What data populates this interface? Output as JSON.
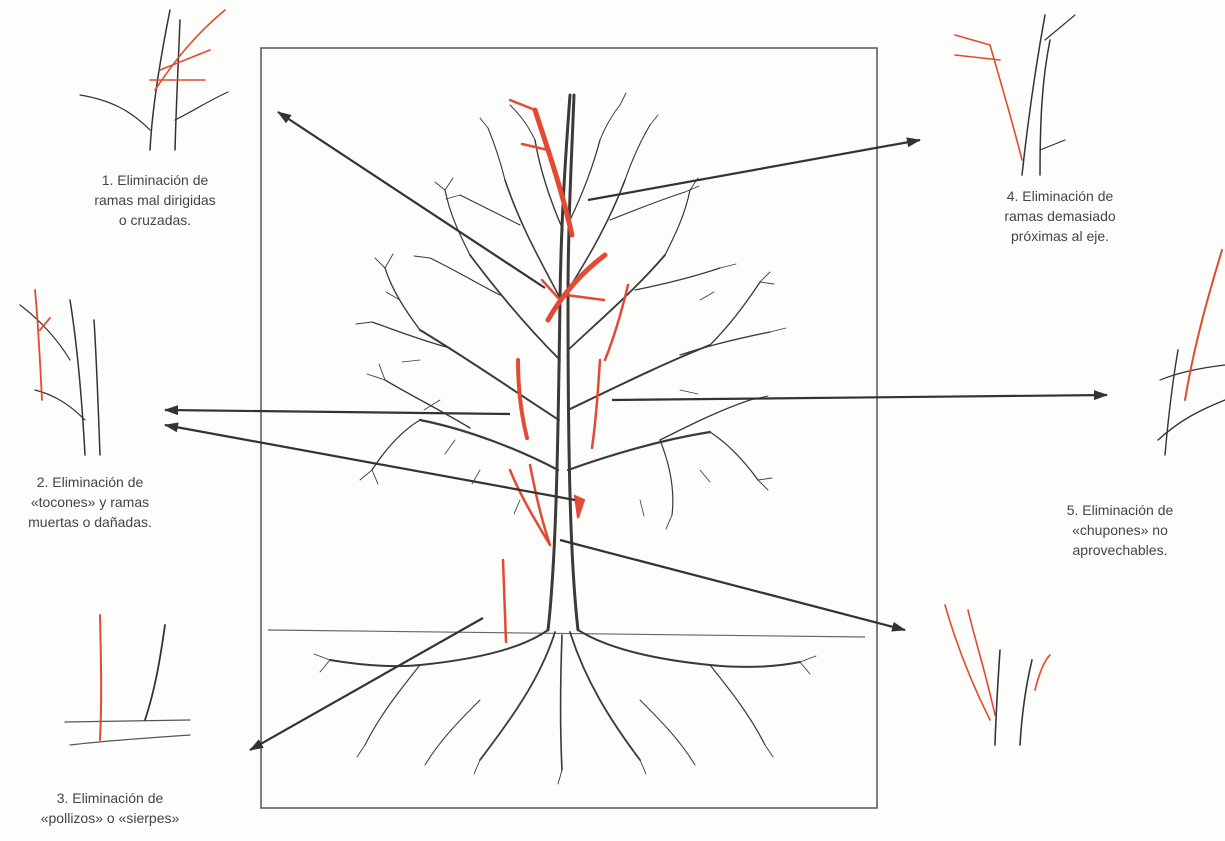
{
  "colors": {
    "branch": "#3a3a3a",
    "cut": "#e24a33",
    "arrow": "#333333",
    "frame": "#555555",
    "background": "#fdfdfb"
  },
  "captions": [
    {
      "id": "1",
      "lines": [
        "1.  Eliminación de",
        "ramas mal dirigidas",
        "o cruzadas."
      ]
    },
    {
      "id": "2",
      "lines": [
        "2.  Eliminación de",
        "«tocones» y ramas",
        "muertas o dañadas."
      ]
    },
    {
      "id": "3",
      "lines": [
        "3.  Eliminación de",
        "«pollizos» o «sierpes»"
      ]
    },
    {
      "id": "4",
      "lines": [
        "4.  Eliminación de",
        "ramas demasiado",
        "próximas al eje."
      ]
    },
    {
      "id": "5",
      "lines": [
        "5.  Eliminación de",
        "«chupones» no",
        "aprovechables."
      ]
    }
  ]
}
